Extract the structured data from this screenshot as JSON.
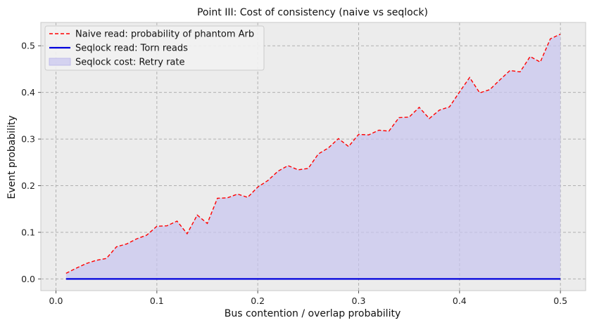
{
  "chart_data": {
    "type": "line",
    "title": "Point III: Cost of consistency (naive vs seqlock)",
    "xlabel": "Bus contention / overlap probability",
    "ylabel": "Event probability",
    "xlim": [
      -0.015,
      0.525
    ],
    "ylim": [
      -0.025,
      0.55
    ],
    "xticks": [
      0.0,
      0.1,
      0.2,
      0.3,
      0.4,
      0.5
    ],
    "xtick_labels": [
      "0.0",
      "0.1",
      "0.2",
      "0.3",
      "0.4",
      "0.5"
    ],
    "yticks": [
      0.0,
      0.1,
      0.2,
      0.3,
      0.4,
      0.5
    ],
    "ytick_labels": [
      "0.0",
      "0.1",
      "0.2",
      "0.3",
      "0.4",
      "0.5"
    ],
    "grid": true,
    "legend_position": "top-left",
    "background": "#ececec",
    "x": [
      0.01,
      0.02,
      0.03,
      0.04,
      0.05,
      0.06,
      0.07,
      0.08,
      0.09,
      0.1,
      0.11,
      0.12,
      0.13,
      0.14,
      0.15,
      0.16,
      0.17,
      0.18,
      0.19,
      0.2,
      0.21,
      0.22,
      0.23,
      0.24,
      0.25,
      0.26,
      0.27,
      0.28,
      0.29,
      0.3,
      0.31,
      0.32,
      0.33,
      0.34,
      0.35,
      0.36,
      0.37,
      0.38,
      0.39,
      0.4,
      0.41,
      0.42,
      0.43,
      0.44,
      0.45,
      0.46,
      0.47,
      0.48,
      0.49,
      0.5
    ],
    "series": [
      {
        "name": "Naive read: probability of phantom Arb",
        "style": "dashed",
        "color": "#ff0000",
        "values": [
          0.012,
          0.023,
          0.033,
          0.04,
          0.044,
          0.069,
          0.075,
          0.086,
          0.094,
          0.113,
          0.114,
          0.124,
          0.097,
          0.137,
          0.119,
          0.173,
          0.174,
          0.182,
          0.175,
          0.197,
          0.211,
          0.231,
          0.243,
          0.234,
          0.237,
          0.268,
          0.281,
          0.301,
          0.284,
          0.31,
          0.309,
          0.319,
          0.317,
          0.346,
          0.347,
          0.368,
          0.344,
          0.362,
          0.369,
          0.401,
          0.432,
          0.399,
          0.406,
          0.427,
          0.447,
          0.444,
          0.477,
          0.465,
          0.515,
          0.525
        ]
      },
      {
        "name": "Seqlock read: Torn reads",
        "style": "solid",
        "color": "#0000dd",
        "values": [
          0,
          0,
          0,
          0,
          0,
          0,
          0,
          0,
          0,
          0,
          0,
          0,
          0,
          0,
          0,
          0,
          0,
          0,
          0,
          0,
          0,
          0,
          0,
          0,
          0,
          0,
          0,
          0,
          0,
          0,
          0,
          0,
          0,
          0,
          0,
          0,
          0,
          0,
          0,
          0,
          0,
          0,
          0,
          0,
          0,
          0,
          0,
          0,
          0,
          0
        ]
      },
      {
        "name": "Seqlock cost: Retry rate",
        "style": "area",
        "color": "#c8c4f0",
        "values": [
          0.012,
          0.023,
          0.033,
          0.04,
          0.044,
          0.069,
          0.075,
          0.086,
          0.094,
          0.113,
          0.114,
          0.124,
          0.097,
          0.137,
          0.119,
          0.173,
          0.174,
          0.182,
          0.175,
          0.197,
          0.211,
          0.231,
          0.243,
          0.234,
          0.237,
          0.268,
          0.281,
          0.301,
          0.284,
          0.31,
          0.309,
          0.319,
          0.317,
          0.346,
          0.347,
          0.368,
          0.344,
          0.362,
          0.369,
          0.401,
          0.432,
          0.399,
          0.406,
          0.427,
          0.447,
          0.444,
          0.477,
          0.465,
          0.515,
          0.525
        ]
      }
    ]
  }
}
